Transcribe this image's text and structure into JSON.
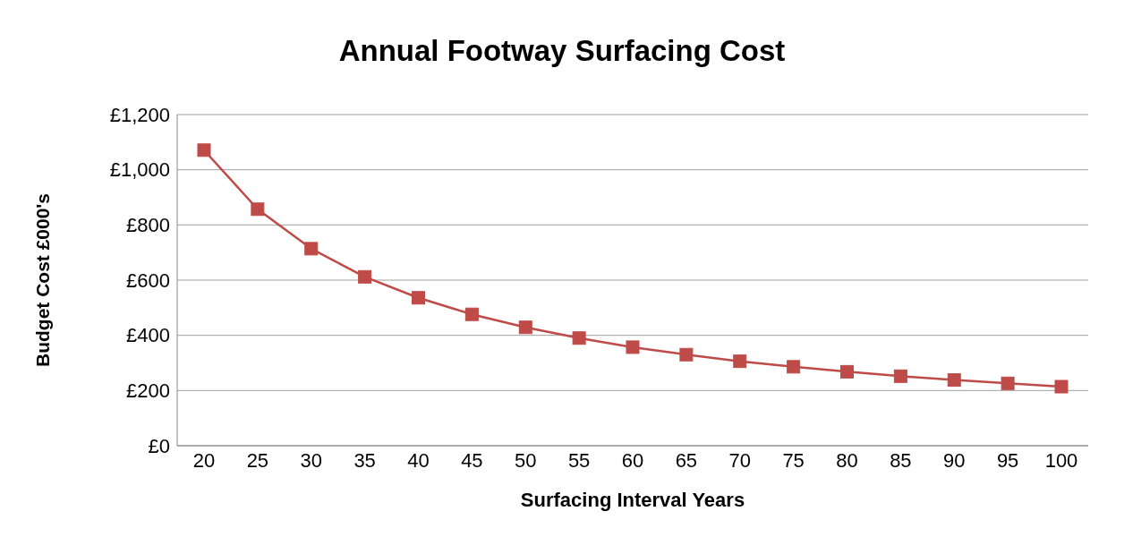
{
  "chart_data": {
    "type": "line",
    "title": "Annual Footway Surfacing Cost",
    "xlabel": "Surfacing Interval Years",
    "ylabel": "Budget Cost £000's",
    "categories": [
      "20",
      "25",
      "30",
      "35",
      "40",
      "45",
      "50",
      "55",
      "60",
      "65",
      "70",
      "75",
      "80",
      "85",
      "90",
      "95",
      "100"
    ],
    "series": [
      {
        "color": "#be4b48",
        "values": [
          1071,
          857,
          714,
          612,
          536,
          476,
          429,
          390,
          357,
          330,
          306,
          286,
          268,
          252,
          238,
          226,
          214
        ]
      }
    ],
    "ylim": [
      0,
      1200
    ],
    "yticks": [
      {
        "value": 0,
        "label": "£0"
      },
      {
        "value": 200,
        "label": "£200"
      },
      {
        "value": 400,
        "label": "£400"
      },
      {
        "value": 600,
        "label": "£600"
      },
      {
        "value": 800,
        "label": "£800"
      },
      {
        "value": 1000,
        "label": "£1,000"
      },
      {
        "value": 1200,
        "label": "£1,200"
      }
    ],
    "grid": "y",
    "legend": false,
    "marker": "square",
    "line_style": "solid"
  }
}
